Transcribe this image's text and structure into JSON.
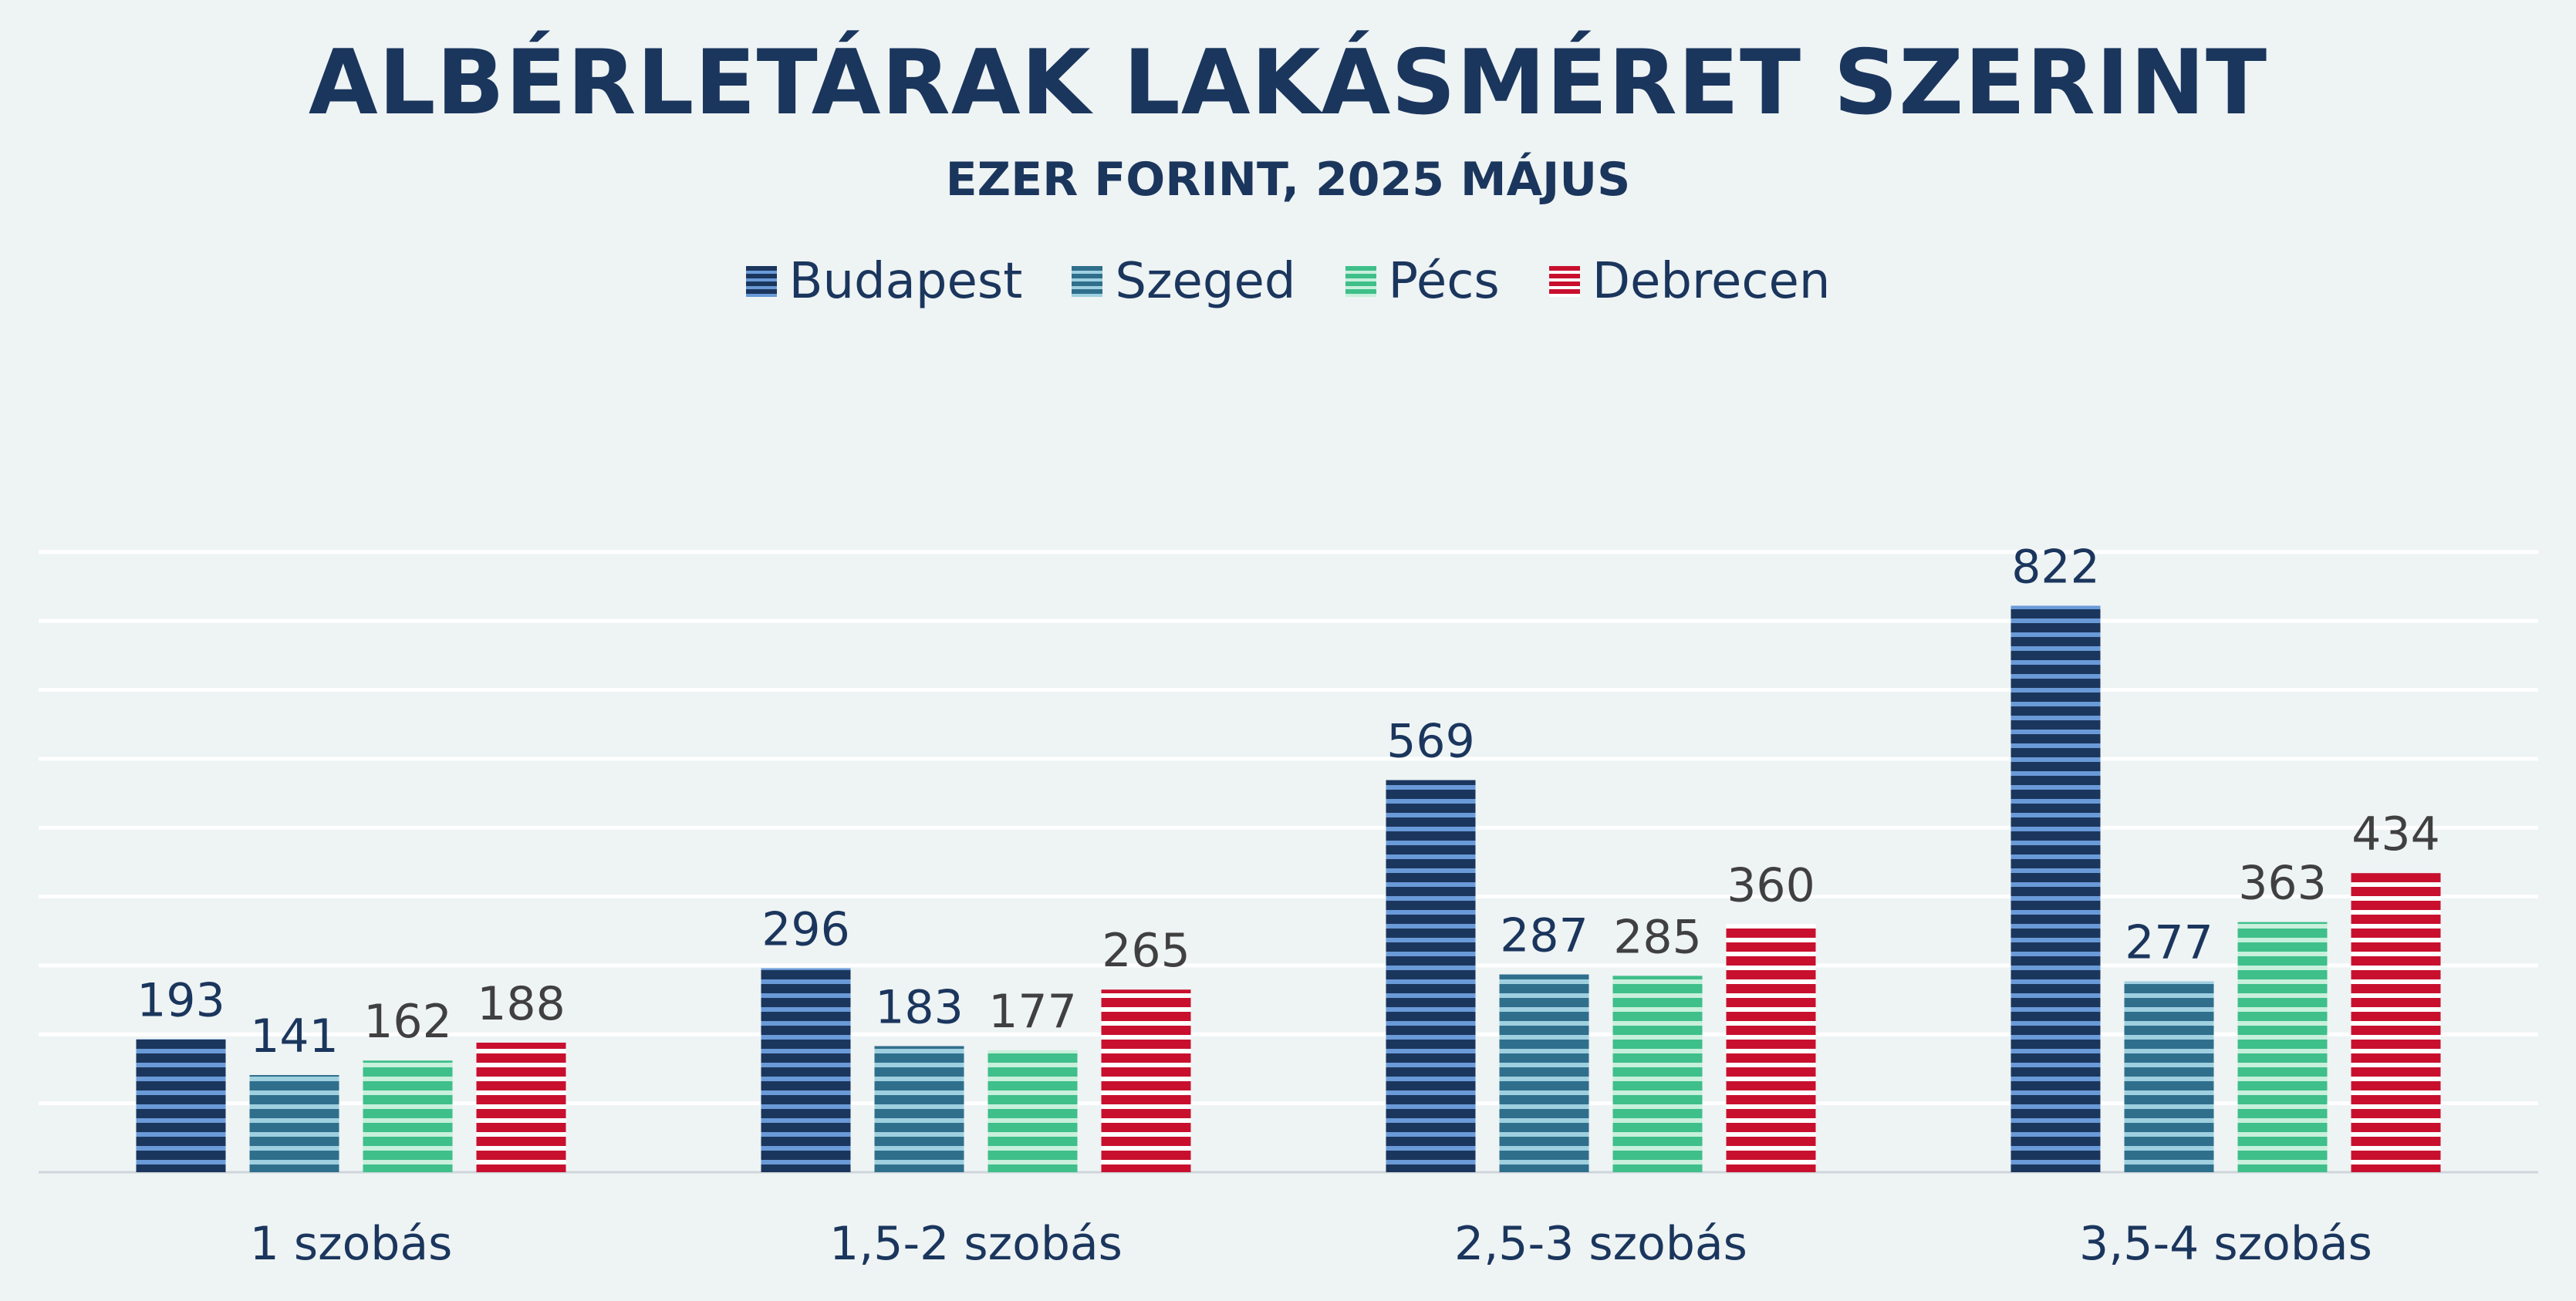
{
  "title": "ALBÉRLETÁRAK LAKÁSMÉRET SZERINT",
  "subtitle": "EZER FORINT, 2025 MÁJUS",
  "legend": [
    {
      "name": "Budapest",
      "color": "#1b365d",
      "stripe": "#6a9ad8"
    },
    {
      "name": "Szeged",
      "color": "#2f6f8c",
      "stripe": "#9fd0e0"
    },
    {
      "name": "Pécs",
      "color": "#3fbf8a",
      "stripe": "#c8f0dc"
    },
    {
      "name": "Debrecen",
      "color": "#c8102e",
      "stripe": "#ffffff"
    }
  ],
  "chart_data": {
    "type": "bar",
    "title": "ALBÉRLETÁRAK LAKÁSMÉRET SZERINT",
    "subtitle": "EZER FORINT, 2025 MÁJUS",
    "categories": [
      "1 szobás",
      "1,5-2 szobás",
      "2,5-3 szobás",
      "3,5-4 szobás"
    ],
    "series": [
      {
        "name": "Budapest",
        "values": [
          193,
          296,
          569,
          822
        ]
      },
      {
        "name": "Szeged",
        "values": [
          141,
          183,
          287,
          277
        ]
      },
      {
        "name": "Pécs",
        "values": [
          162,
          177,
          285,
          363
        ]
      },
      {
        "name": "Debrecen",
        "values": [
          188,
          265,
          360,
          434
        ]
      }
    ],
    "ylim": [
      0,
      900
    ],
    "grid": true,
    "legend_position": "top-center",
    "label_colors": [
      "#1b365d",
      "#1b365d",
      "#404040",
      "#404040"
    ]
  }
}
